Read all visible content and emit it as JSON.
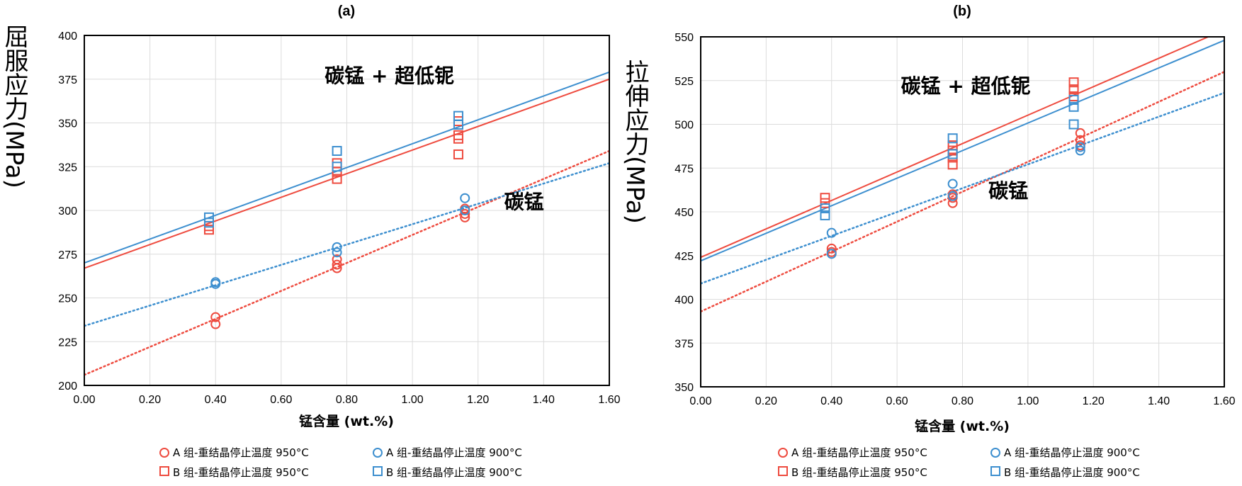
{
  "colors": {
    "red": "#ee4b3f",
    "blue": "#3d8fcf",
    "grid": "#dcdcdc",
    "frame": "#000000"
  },
  "legend": [
    {
      "marker": "circle",
      "color": "red",
      "label": "A 组-重结晶停止温度 950°C"
    },
    {
      "marker": "circle",
      "color": "blue",
      "label": "A 组-重结晶停止温度 900°C"
    },
    {
      "marker": "square",
      "color": "red",
      "label": "B 组-重结晶停止温度 950°C"
    },
    {
      "marker": "square",
      "color": "blue",
      "label": "B 组-重结晶停止温度 900°C"
    }
  ],
  "chart_data": [
    {
      "type": "scatter",
      "title": "(a)",
      "xlabel": "锰含量 (wt.%)",
      "ylabel": "屈服应力(MPa)",
      "xlim": [
        0,
        1.6
      ],
      "ylim": [
        200,
        400
      ],
      "xticks": [
        "0.00",
        "0.20",
        "0.40",
        "0.60",
        "0.80",
        "1.00",
        "1.20",
        "1.40",
        "1.60"
      ],
      "yticks": [
        "200",
        "225",
        "250",
        "275",
        "300",
        "325",
        "350",
        "375",
        "400"
      ],
      "grid": true,
      "annotations": [
        {
          "text": "碳锰 + 超低铌",
          "x": 0.93,
          "y": 373
        },
        {
          "text": "碳锰",
          "x": 1.34,
          "y": 301
        }
      ],
      "series": [
        {
          "name": "A 组-重结晶停止温度 950°C",
          "marker": "circle",
          "color": "red",
          "points": [
            [
              0.4,
              239
            ],
            [
              0.4,
              235
            ],
            [
              0.77,
              267
            ],
            [
              0.77,
              269
            ],
            [
              0.77,
              272
            ],
            [
              1.16,
              296
            ],
            [
              1.16,
              298
            ],
            [
              1.16,
              301
            ]
          ],
          "fit": {
            "style": "dotted",
            "from": [
              0,
              206
            ],
            "to": [
              1.6,
              334
            ]
          }
        },
        {
          "name": "A 组-重结晶停止温度 900°C",
          "marker": "circle",
          "color": "blue",
          "points": [
            [
              0.4,
              259
            ],
            [
              0.4,
              258
            ],
            [
              0.77,
              279
            ],
            [
              0.77,
              276
            ],
            [
              1.16,
              307
            ],
            [
              1.16,
              300
            ]
          ],
          "fit": {
            "style": "dotted",
            "from": [
              0,
              234
            ],
            "to": [
              1.6,
              327
            ]
          }
        },
        {
          "name": "B 组-重结晶停止温度 950°C",
          "marker": "square",
          "color": "red",
          "points": [
            [
              0.38,
              289
            ],
            [
              0.38,
              291
            ],
            [
              0.77,
              318
            ],
            [
              0.77,
              322
            ],
            [
              0.77,
              327
            ],
            [
              1.14,
              332
            ],
            [
              1.14,
              341
            ],
            [
              1.14,
              343
            ],
            [
              1.14,
              351
            ]
          ],
          "fit": {
            "style": "solid",
            "from": [
              0,
              267
            ],
            "to": [
              1.6,
              375
            ]
          }
        },
        {
          "name": "B 组-重结晶停止温度 900°C",
          "marker": "square",
          "color": "blue",
          "points": [
            [
              0.38,
              296
            ],
            [
              0.38,
              293
            ],
            [
              0.77,
              334
            ],
            [
              0.77,
              325
            ],
            [
              1.14,
              354
            ],
            [
              1.14,
              349
            ]
          ],
          "fit": {
            "style": "solid",
            "from": [
              0,
              270
            ],
            "to": [
              1.6,
              379
            ]
          }
        }
      ]
    },
    {
      "type": "scatter",
      "title": "(b)",
      "xlabel": "锰含量 (wt.%)",
      "ylabel": "拉伸应力(MPa)",
      "xlim": [
        0,
        1.6
      ],
      "ylim": [
        350,
        550
      ],
      "xticks": [
        "0.00",
        "0.20",
        "0.40",
        "0.60",
        "0.80",
        "1.00",
        "1.20",
        "1.40",
        "1.60"
      ],
      "yticks": [
        "350",
        "375",
        "400",
        "425",
        "450",
        "475",
        "500",
        "525",
        "550"
      ],
      "grid": true,
      "annotations": [
        {
          "text": "碳锰 + 超低铌",
          "x": 0.81,
          "y": 518
        },
        {
          "text": "碳锰",
          "x": 0.94,
          "y": 458
        }
      ],
      "series": [
        {
          "name": "A 组-重结晶停止温度 950°C",
          "marker": "circle",
          "color": "red",
          "points": [
            [
              0.4,
              429
            ],
            [
              0.4,
              427
            ],
            [
              0.77,
              455
            ],
            [
              0.77,
              458
            ],
            [
              0.77,
              460
            ],
            [
              1.16,
              495
            ],
            [
              1.16,
              491
            ],
            [
              1.16,
              488
            ]
          ],
          "fit": {
            "style": "dotted",
            "from": [
              0,
              393
            ],
            "to": [
              1.6,
              530
            ]
          }
        },
        {
          "name": "A 组-重结晶停止温度 900°C",
          "marker": "circle",
          "color": "blue",
          "points": [
            [
              0.4,
              438
            ],
            [
              0.4,
              426
            ],
            [
              0.77,
              466
            ],
            [
              0.77,
              459
            ],
            [
              1.16,
              485
            ],
            [
              1.16,
              487
            ]
          ],
          "fit": {
            "style": "dotted",
            "from": [
              0,
              409
            ],
            "to": [
              1.6,
              518
            ]
          }
        },
        {
          "name": "B 组-重结晶停止温度 950°C",
          "marker": "square",
          "color": "red",
          "points": [
            [
              0.38,
              458
            ],
            [
              0.38,
              455
            ],
            [
              0.77,
              477
            ],
            [
              0.77,
              481
            ],
            [
              0.77,
              485
            ],
            [
              0.77,
              488
            ],
            [
              1.14,
              524
            ],
            [
              1.14,
              520
            ],
            [
              1.14,
              516
            ]
          ],
          "fit": {
            "style": "solid",
            "from": [
              0,
              424
            ],
            "to": [
              1.6,
              554
            ]
          }
        },
        {
          "name": "B 组-重结晶停止温度 900°C",
          "marker": "square",
          "color": "blue",
          "points": [
            [
              0.38,
              452
            ],
            [
              0.38,
              448
            ],
            [
              0.77,
              492
            ],
            [
              0.77,
              483
            ],
            [
              1.14,
              514
            ],
            [
              1.14,
              510
            ],
            [
              1.14,
              500
            ]
          ],
          "fit": {
            "style": "solid",
            "from": [
              0,
              422
            ],
            "to": [
              1.6,
              548
            ]
          }
        }
      ]
    }
  ]
}
